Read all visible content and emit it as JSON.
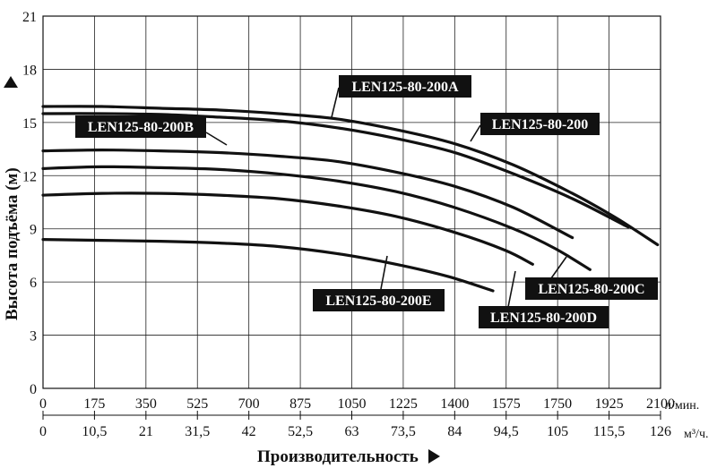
{
  "chart_data": {
    "type": "line",
    "xlabel": "Производительность",
    "ylabel": "Высота подъёма (м)",
    "x_unit_primary": "л/мин.",
    "x_unit_secondary": "м³/ч.",
    "xlim": [
      0,
      2100
    ],
    "ylim": [
      0,
      21
    ],
    "x_ticks": [
      "0",
      "175",
      "350",
      "525",
      "700",
      "875",
      "1050",
      "1225",
      "1400",
      "1575",
      "1750",
      "1925",
      "2100"
    ],
    "x2_ticks": [
      "0",
      "10,5",
      "21",
      "31,5",
      "42",
      "52,5",
      "63",
      "73,5",
      "84",
      "94,5",
      "105",
      "115,5",
      "126"
    ],
    "y_ticks": [
      "0",
      "3",
      "6",
      "9",
      "12",
      "15",
      "18",
      "21"
    ],
    "grid": true,
    "series": [
      {
        "name": "LEN125-80-200",
        "x": [
          0,
          200,
          400,
          600,
          800,
          1000,
          1200,
          1400,
          1600,
          1800,
          1950,
          2090
        ],
        "y": [
          15.9,
          15.9,
          15.8,
          15.7,
          15.5,
          15.2,
          14.6,
          13.8,
          12.6,
          11.0,
          9.6,
          8.1
        ]
      },
      {
        "name": "LEN125-80-200A",
        "x": [
          0,
          200,
          400,
          600,
          800,
          1000,
          1200,
          1400,
          1600,
          1800,
          1990
        ],
        "y": [
          15.5,
          15.5,
          15.45,
          15.3,
          15.1,
          14.7,
          14.1,
          13.3,
          12.1,
          10.7,
          9.1
        ]
      },
      {
        "name": "LEN125-80-200B",
        "x": [
          0,
          200,
          400,
          600,
          800,
          1000,
          1200,
          1400,
          1600,
          1800
        ],
        "y": [
          13.4,
          13.45,
          13.4,
          13.3,
          13.1,
          12.8,
          12.2,
          11.4,
          10.2,
          8.5
        ]
      },
      {
        "name": "LEN125-80-200C",
        "x": [
          0,
          200,
          400,
          600,
          800,
          1000,
          1200,
          1400,
          1600,
          1740,
          1860
        ],
        "y": [
          12.4,
          12.5,
          12.45,
          12.35,
          12.1,
          11.7,
          11.1,
          10.2,
          9.0,
          7.9,
          6.7
        ]
      },
      {
        "name": "LEN125-80-200D",
        "x": [
          0,
          200,
          400,
          600,
          800,
          1000,
          1200,
          1400,
          1570,
          1665
        ],
        "y": [
          10.9,
          11.0,
          11.0,
          10.9,
          10.7,
          10.3,
          9.7,
          8.8,
          7.8,
          7.0
        ]
      },
      {
        "name": "LEN125-80-200E",
        "x": [
          0,
          200,
          400,
          600,
          800,
          1000,
          1200,
          1380,
          1530
        ],
        "y": [
          8.4,
          8.35,
          8.3,
          8.2,
          8.0,
          7.6,
          7.0,
          6.3,
          5.5
        ]
      }
    ],
    "annotations": [
      {
        "text": "LEN125-80-200A",
        "series": 1
      },
      {
        "text": "LEN125-80-200",
        "series": 0
      },
      {
        "text": "LEN125-80-200B",
        "series": 2
      },
      {
        "text": "LEN125-80-200C",
        "series": 3
      },
      {
        "text": "LEN125-80-200D",
        "series": 4
      },
      {
        "text": "LEN125-80-200E",
        "series": 5
      }
    ]
  }
}
